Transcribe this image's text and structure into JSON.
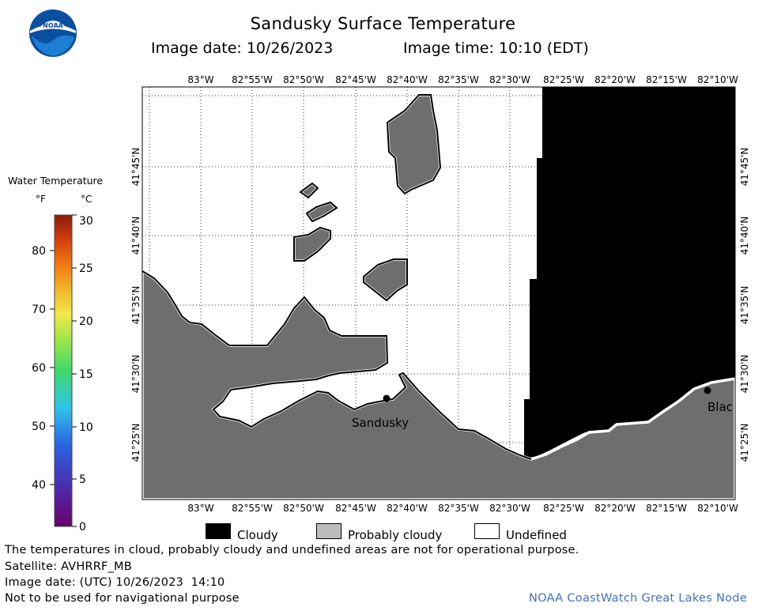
{
  "header": {
    "title": "Sandusky Surface Temperature",
    "image_date": "Image date: 10/26/2023",
    "image_time": "Image time: 10:10 (EDT)"
  },
  "logo": {
    "text": "NOAA",
    "icon": "noaa-logo-icon"
  },
  "map": {
    "lon_labels": [
      "83°W",
      "82°55'W",
      "82°50'W",
      "82°45'W",
      "82°40'W",
      "82°35'W",
      "82°30'W",
      "82°25'W",
      "82°20'W",
      "82°15'W",
      "82°10'W"
    ],
    "lat_labels": [
      "41°45'N",
      "41°40'N",
      "41°35'N",
      "41°30'N",
      "41°25'N"
    ],
    "cities": [
      {
        "name": "Sandusky"
      },
      {
        "name": "Blac"
      }
    ],
    "colors": {
      "land": "#6e6e6e",
      "cloud": "#000000",
      "undefined_water": "#ffffff",
      "coast_outline": "#000000"
    }
  },
  "colorbar": {
    "title": "Water Temperature",
    "unit_f": "°F",
    "unit_c": "°C",
    "f_ticks": [
      "40",
      "50",
      "60",
      "70",
      "80"
    ],
    "c_ticks": [
      "0",
      "5",
      "10",
      "15",
      "20",
      "25",
      "30"
    ]
  },
  "legend": [
    {
      "label": "Cloudy",
      "color": "#000000"
    },
    {
      "label": "Probably cloudy",
      "color": "#bdbdbd"
    },
    {
      "label": "Undefined",
      "color": "#ffffff"
    }
  ],
  "footer": {
    "note": "The temperatures in cloud, probably cloudy and undefined areas are not for operational purpose.",
    "satellite": "Satellite: AVHRRF_MB",
    "utc_date": "Image date: (UTC) 10/26/2023  14:10",
    "warning": "Not to be used for navigational purpose",
    "credit": "NOAA CoastWatch Great Lakes Node"
  }
}
